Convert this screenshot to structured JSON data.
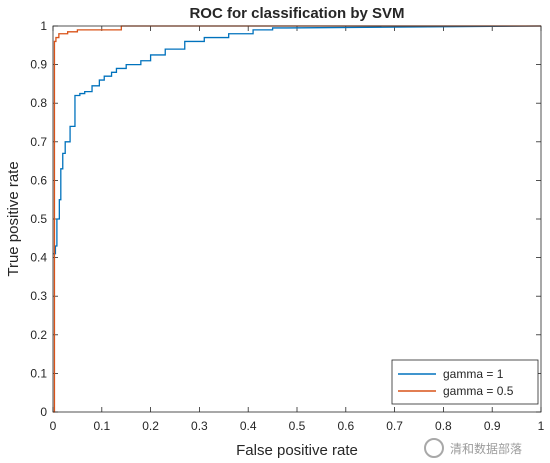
{
  "chart_data": {
    "type": "line",
    "title": "ROC for classification by SVM",
    "xlabel": "False positive rate",
    "ylabel": "True positive rate",
    "xlim": [
      0,
      1
    ],
    "ylim": [
      0,
      1
    ],
    "xticks": [
      "0",
      "0.1",
      "0.2",
      "0.3",
      "0.4",
      "0.5",
      "0.6",
      "0.7",
      "0.8",
      "0.9",
      "1"
    ],
    "yticks": [
      "0",
      "0.1",
      "0.2",
      "0.3",
      "0.4",
      "0.5",
      "0.6",
      "0.7",
      "0.8",
      "0.9",
      "1"
    ],
    "grid": false,
    "legend_position": "bottom-right",
    "series": [
      {
        "name": "gamma = 1",
        "color": "#0072BD",
        "x": [
          0,
          0.005,
          0.005,
          0.008,
          0.008,
          0.013,
          0.013,
          0.016,
          0.016,
          0.02,
          0.02,
          0.025,
          0.025,
          0.035,
          0.035,
          0.045,
          0.045,
          0.055,
          0.055,
          0.065,
          0.065,
          0.08,
          0.08,
          0.095,
          0.095,
          0.105,
          0.105,
          0.12,
          0.12,
          0.13,
          0.13,
          0.15,
          0.15,
          0.18,
          0.18,
          0.2,
          0.2,
          0.23,
          0.23,
          0.27,
          0.27,
          0.31,
          0.31,
          0.36,
          0.36,
          0.41,
          0.41,
          0.45,
          0.45,
          0.48,
          1
        ],
        "y": [
          0.41,
          0.41,
          0.43,
          0.43,
          0.5,
          0.5,
          0.55,
          0.55,
          0.63,
          0.63,
          0.67,
          0.67,
          0.7,
          0.7,
          0.74,
          0.74,
          0.82,
          0.82,
          0.825,
          0.825,
          0.83,
          0.83,
          0.845,
          0.845,
          0.86,
          0.86,
          0.87,
          0.87,
          0.88,
          0.88,
          0.89,
          0.89,
          0.9,
          0.9,
          0.91,
          0.91,
          0.925,
          0.925,
          0.94,
          0.94,
          0.96,
          0.96,
          0.97,
          0.97,
          0.98,
          0.98,
          0.99,
          0.99,
          0.995,
          0.995,
          1
        ]
      },
      {
        "name": "gamma = 0.5",
        "color": "#D95319",
        "x": [
          0,
          0.003,
          0.003,
          0.006,
          0.006,
          0.012,
          0.012,
          0.03,
          0.03,
          0.05,
          0.05,
          0.14,
          0.14,
          1
        ],
        "y": [
          0,
          0,
          0.96,
          0.96,
          0.97,
          0.97,
          0.98,
          0.98,
          0.985,
          0.985,
          0.99,
          0.99,
          1,
          1
        ]
      }
    ]
  },
  "watermark": "清和数据部落"
}
